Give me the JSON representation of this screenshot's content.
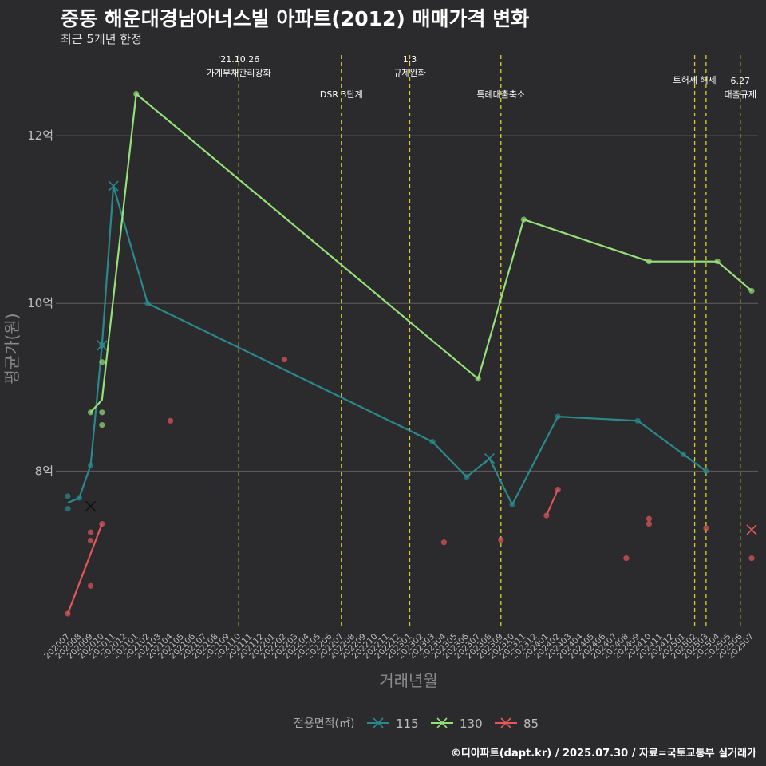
{
  "header": {
    "title": "중동 해운대경남아너스빌 아파트(2012) 매매가격 변화",
    "subtitle": "최근 5개년 한정",
    "credit": "©디아파트(dapt.kr) / 2025.07.30 / 자료=국토교통부 실거래가"
  },
  "chart_data": {
    "type": "line",
    "xlabel": "거래년월",
    "ylabel": "평균가(원)",
    "x_start": "202007",
    "x_end": "202507",
    "categories": [
      "202007",
      "202008",
      "202009",
      "202010",
      "202011",
      "202012",
      "202101",
      "202102",
      "202103",
      "202104",
      "202105",
      "202106",
      "202107",
      "202108",
      "202109",
      "202110",
      "202111",
      "202112",
      "202201",
      "202202",
      "202203",
      "202204",
      "202205",
      "202206",
      "202207",
      "202208",
      "202209",
      "202210",
      "202211",
      "202212",
      "202301",
      "202302",
      "202303",
      "202304",
      "202305",
      "202306",
      "202307",
      "202308",
      "202309",
      "202310",
      "202311",
      "202312",
      "202401",
      "202402",
      "202403",
      "202404",
      "202405",
      "202406",
      "202407",
      "202408",
      "202409",
      "202410",
      "202411",
      "202412",
      "202501",
      "202502",
      "202503",
      "202504",
      "202505",
      "202506",
      "202507"
    ],
    "y_unit": "억",
    "ylim": [
      6.1,
      13.0
    ],
    "yticks": [
      {
        "value": 8,
        "label": "8억"
      },
      {
        "value": 10,
        "label": "10억"
      },
      {
        "value": 12,
        "label": "12억"
      }
    ],
    "grid": "horizontal",
    "legend": {
      "title": "전용면적(㎡)",
      "position": "bottom"
    },
    "events": [
      {
        "x": "202110",
        "lines": [
          "'21.10.26",
          "가계부채관리강화"
        ],
        "level": 1
      },
      {
        "x": "202207",
        "lines": [
          "DSR 3단계"
        ],
        "level": 2
      },
      {
        "x": "202301",
        "lines": [
          "1.3",
          "규제완화"
        ],
        "level": 1
      },
      {
        "x": "202309",
        "lines": [
          "특례대출축소"
        ],
        "level": 2
      },
      {
        "x": "202502",
        "lines": [
          "토허제 해제"
        ],
        "level": 1
      },
      {
        "x": "202503",
        "lines": [],
        "level": 1
      },
      {
        "x": "202506",
        "lines": [
          "6.27",
          "대출규제"
        ],
        "level": 2
      }
    ],
    "series": [
      {
        "name": "115",
        "color": "#2a8a8b",
        "line": [
          {
            "x": "202007",
            "y": 7.62
          },
          {
            "x": "202008",
            "y": 7.68
          },
          {
            "x": "202009",
            "y": 8.07
          },
          {
            "x": "202010",
            "y": 9.5
          },
          {
            "x": "202011",
            "y": 11.4
          },
          {
            "x": "202102",
            "y": 10.0
          },
          {
            "x": "202303",
            "y": 8.35
          },
          {
            "x": "202306",
            "y": 7.93
          },
          {
            "x": "202308",
            "y": 8.15
          },
          {
            "x": "202310",
            "y": 7.6
          },
          {
            "x": "202402",
            "y": 8.65
          },
          {
            "x": "202409",
            "y": 8.6
          },
          {
            "x": "202501",
            "y": 8.2
          },
          {
            "x": "202503",
            "y": 8.0
          }
        ],
        "points": [
          {
            "x": "202007",
            "y": 7.7
          },
          {
            "x": "202007",
            "y": 7.55
          },
          {
            "x": "202008",
            "y": 7.68
          },
          {
            "x": "202009",
            "y": 8.07
          },
          {
            "x": "202010",
            "y": 9.5
          },
          {
            "x": "202102",
            "y": 10.0
          },
          {
            "x": "202303",
            "y": 8.35
          },
          {
            "x": "202306",
            "y": 7.93
          },
          {
            "x": "202310",
            "y": 7.6
          },
          {
            "x": "202402",
            "y": 8.65
          },
          {
            "x": "202409",
            "y": 8.6
          },
          {
            "x": "202501",
            "y": 8.2
          },
          {
            "x": "202503",
            "y": 8.0
          }
        ],
        "crosses": [
          {
            "x": "202009",
            "y": 7.58
          },
          {
            "x": "202010",
            "y": 9.5
          },
          {
            "x": "202011",
            "y": 11.4
          },
          {
            "x": "202308",
            "y": 8.15
          }
        ]
      },
      {
        "name": "130",
        "color": "#96e07a",
        "line": [
          {
            "x": "202009",
            "y": 8.7
          },
          {
            "x": "202010",
            "y": 8.85
          },
          {
            "x": "202101",
            "y": 12.5
          },
          {
            "x": "202307",
            "y": 9.1
          },
          {
            "x": "202311",
            "y": 11.0
          },
          {
            "x": "202410",
            "y": 10.5
          },
          {
            "x": "202504",
            "y": 10.5
          },
          {
            "x": "202507",
            "y": 10.15
          }
        ],
        "points": [
          {
            "x": "202009",
            "y": 8.7
          },
          {
            "x": "202010",
            "y": 9.3
          },
          {
            "x": "202010",
            "y": 8.7
          },
          {
            "x": "202010",
            "y": 8.55
          },
          {
            "x": "202101",
            "y": 12.5
          },
          {
            "x": "202307",
            "y": 9.1
          },
          {
            "x": "202311",
            "y": 11.0
          },
          {
            "x": "202410",
            "y": 10.5
          },
          {
            "x": "202504",
            "y": 10.5
          },
          {
            "x": "202507",
            "y": 10.15
          }
        ],
        "crosses": []
      },
      {
        "name": "85",
        "color": "#e2585c",
        "line": [
          {
            "x": "202007",
            "y": 6.3
          },
          {
            "x": "202010",
            "y": 7.37
          }
        ],
        "points": [
          {
            "x": "202007",
            "y": 6.3
          },
          {
            "x": "202009",
            "y": 7.27
          },
          {
            "x": "202009",
            "y": 7.17
          },
          {
            "x": "202009",
            "y": 6.63
          },
          {
            "x": "202010",
            "y": 7.37
          },
          {
            "x": "202104",
            "y": 8.6
          },
          {
            "x": "202202",
            "y": 9.33
          },
          {
            "x": "202304",
            "y": 7.15
          },
          {
            "x": "202309",
            "y": 7.18
          },
          {
            "x": "202401",
            "y": 7.47
          },
          {
            "x": "202402",
            "y": 7.78
          },
          {
            "x": "202408",
            "y": 6.96
          },
          {
            "x": "202410",
            "y": 7.43
          },
          {
            "x": "202410",
            "y": 7.37
          },
          {
            "x": "202503",
            "y": 7.32
          },
          {
            "x": "202507",
            "y": 6.96
          }
        ],
        "segments": [
          {
            "x1": "202401",
            "y1": 7.47,
            "x2": "202402",
            "y2": 7.78
          }
        ],
        "crosses": [
          {
            "x": "202507",
            "y": 7.3
          }
        ]
      }
    ]
  }
}
